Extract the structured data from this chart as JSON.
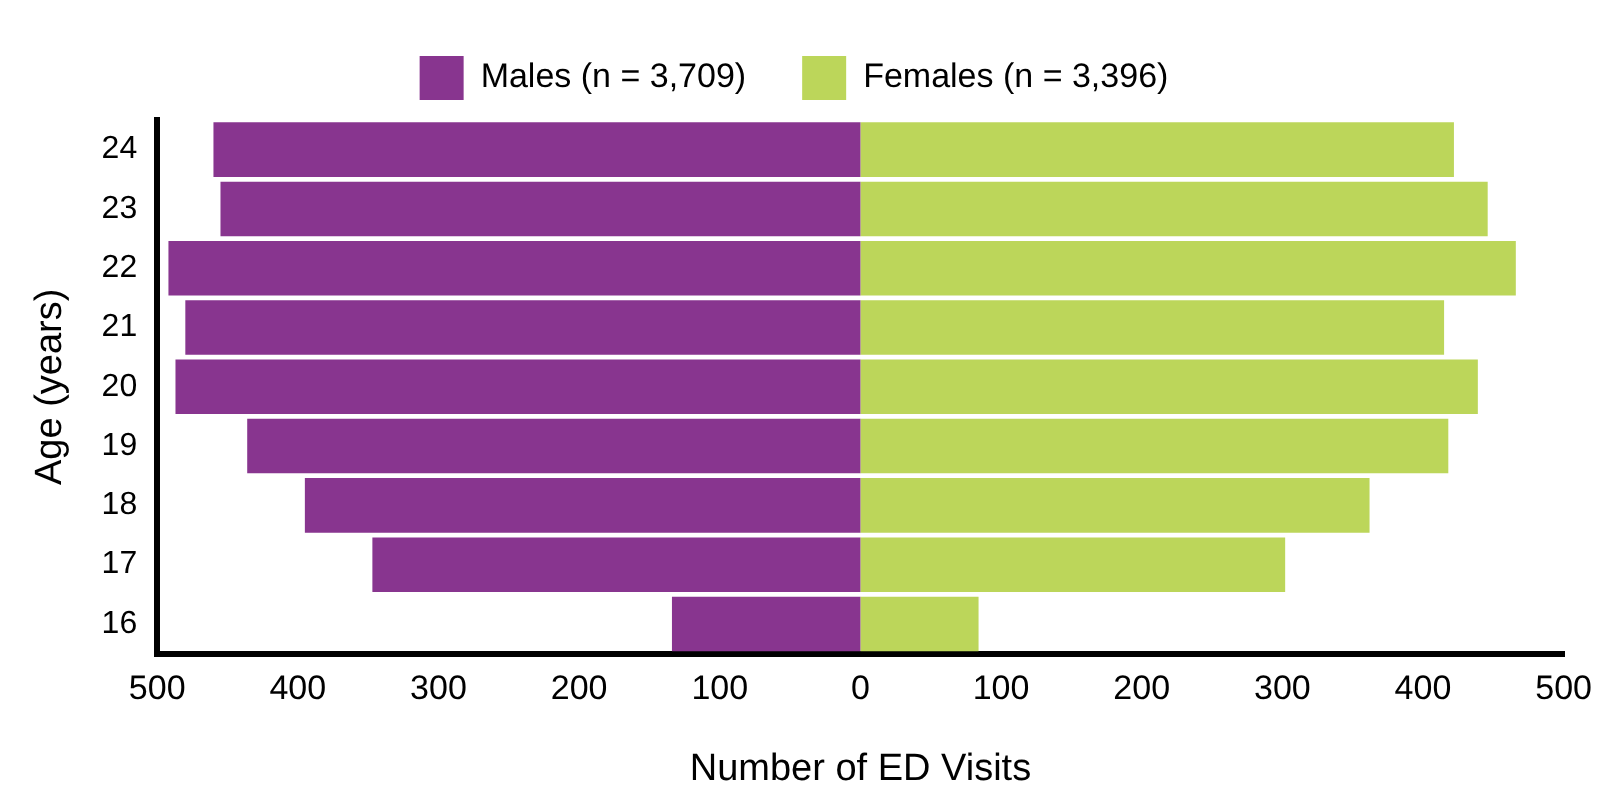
{
  "chart_data": {
    "type": "bar",
    "orientation": "horizontal",
    "stacked": true,
    "xlabel": "Number of ED Visits",
    "ylabel": "Age (years)",
    "categories": [
      "24",
      "23",
      "22",
      "21",
      "20",
      "19",
      "18",
      "17",
      "16"
    ],
    "series": [
      {
        "name": "Males (n = 3,709)",
        "color": "#88358f",
        "values": [
          -460,
          -455,
          -492,
          -480,
          -487,
          -436,
          -395,
          -347,
          -134
        ]
      },
      {
        "name": "Females (n = 3,396)",
        "color": "#bcd65a",
        "values": [
          422,
          446,
          466,
          415,
          439,
          418,
          362,
          302,
          84
        ]
      }
    ],
    "xlim": [
      -500,
      500
    ],
    "xticks": [
      {
        "value": -500,
        "label": "500"
      },
      {
        "value": -400,
        "label": "400"
      },
      {
        "value": -300,
        "label": "300"
      },
      {
        "value": -200,
        "label": "200"
      },
      {
        "value": -100,
        "label": "100"
      },
      0,
      100,
      200,
      300,
      400,
      500
    ],
    "grid": false,
    "legend": "top"
  }
}
